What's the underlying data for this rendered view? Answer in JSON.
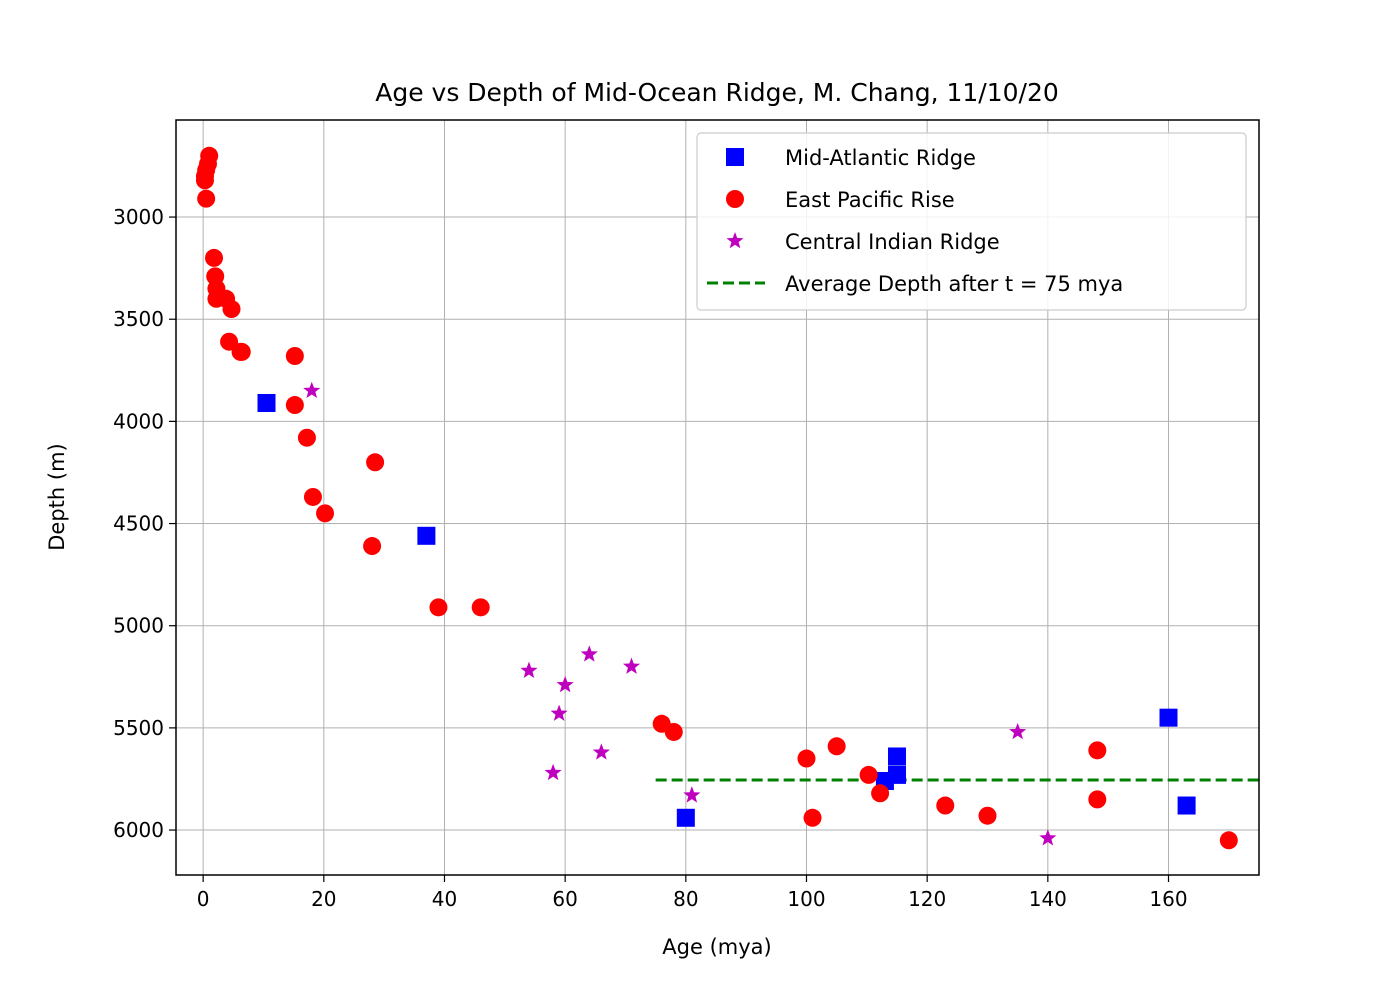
{
  "chart_data": {
    "type": "scatter",
    "title": "Age vs Depth of Mid-Ocean Ridge, M. Chang, 11/10/20",
    "xlabel": "Age (mya)",
    "ylabel": "Depth (m)",
    "xlim": [
      -4.5,
      175
    ],
    "ylim": [
      6220,
      2525
    ],
    "y_inverted": true,
    "xticks": [
      0,
      20,
      40,
      60,
      80,
      100,
      120,
      140,
      160
    ],
    "yticks": [
      3000,
      3500,
      4000,
      4500,
      5000,
      5500,
      6000
    ],
    "grid": true,
    "legend_position": "upper right",
    "series": [
      {
        "name": "Mid-Atlantic Ridge",
        "marker": "square",
        "color": "#0000ff",
        "points": [
          [
            10.5,
            3910
          ],
          [
            37,
            4560
          ],
          [
            80,
            5940
          ],
          [
            113,
            5760
          ],
          [
            115,
            5640
          ],
          [
            115,
            5730
          ],
          [
            160,
            5450
          ],
          [
            163,
            5880
          ]
        ]
      },
      {
        "name": "East Pacific Rise",
        "marker": "circle",
        "color": "#ff0000",
        "points": [
          [
            1,
            2700
          ],
          [
            0.8,
            2740
          ],
          [
            0.5,
            2770
          ],
          [
            0.3,
            2800
          ],
          [
            0.3,
            2820
          ],
          [
            0.5,
            2910
          ],
          [
            1.8,
            3200
          ],
          [
            2,
            3290
          ],
          [
            2.2,
            3350
          ],
          [
            2.2,
            3400
          ],
          [
            3.8,
            3400
          ],
          [
            4.7,
            3450
          ],
          [
            4.3,
            3610
          ],
          [
            6.2,
            3660
          ],
          [
            6.4,
            3660
          ],
          [
            15.2,
            3680
          ],
          [
            15.2,
            3920
          ],
          [
            17.2,
            4080
          ],
          [
            18.2,
            4370
          ],
          [
            20.2,
            4450
          ],
          [
            28.5,
            4200
          ],
          [
            28,
            4610
          ],
          [
            39,
            4910
          ],
          [
            46,
            4910
          ],
          [
            76,
            5480
          ],
          [
            78,
            5520
          ],
          [
            100,
            5650
          ],
          [
            105,
            5590
          ],
          [
            101,
            5940
          ],
          [
            110.3,
            5730
          ],
          [
            112.2,
            5820
          ],
          [
            123,
            5880
          ],
          [
            130,
            5930
          ],
          [
            148.2,
            5610
          ],
          [
            148.2,
            5850
          ],
          [
            170,
            6050
          ]
        ]
      },
      {
        "name": "Central Indian Ridge",
        "marker": "star",
        "color": "#bf00bf",
        "points": [
          [
            18,
            3850
          ],
          [
            54,
            5220
          ],
          [
            60,
            5290
          ],
          [
            64,
            5140
          ],
          [
            71,
            5200
          ],
          [
            59,
            5430
          ],
          [
            66,
            5620
          ],
          [
            58,
            5720
          ],
          [
            81,
            5830
          ],
          [
            135,
            5520
          ],
          [
            140,
            6040
          ]
        ]
      }
    ],
    "reference_line": {
      "name": "Average Depth after t = 75 mya",
      "style": "dashed",
      "color": "#008000",
      "x_start": 75,
      "y": 5755
    }
  }
}
